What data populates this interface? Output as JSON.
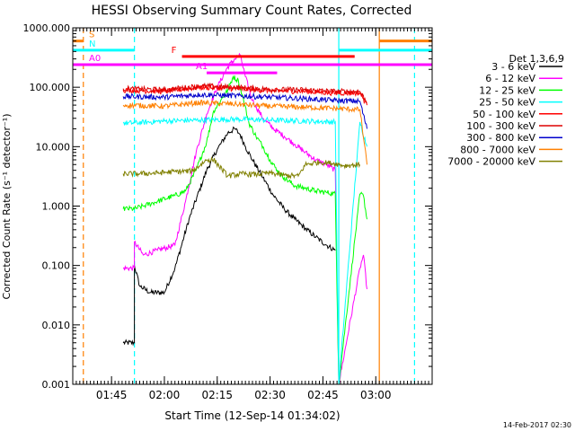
{
  "chart_data": {
    "type": "line",
    "title": "HESSI Observing Summary Count Rates, Corrected",
    "xlabel": "Start Time (12-Sep-14 01:34:02)",
    "ylabel": "Corrected Count Rate (s⁻¹ detector⁻¹)",
    "y_scale": "log",
    "ylim": [
      0.001,
      1000
    ],
    "xlim_minutes": [
      0,
      102
    ],
    "x_ticks": [
      {
        "t": 11,
        "label": "01:45"
      },
      {
        "t": 26,
        "label": "02:00"
      },
      {
        "t": 41,
        "label": "02:15"
      },
      {
        "t": 56,
        "label": "02:30"
      },
      {
        "t": 71,
        "label": "02:45"
      },
      {
        "t": 86,
        "label": "03:00"
      }
    ],
    "y_ticks": [
      {
        "v": 0.001,
        "label": "0.001"
      },
      {
        "v": 0.01,
        "label": "0.010"
      },
      {
        "v": 0.1,
        "label": "0.100"
      },
      {
        "v": 1,
        "label": "1.000"
      },
      {
        "v": 10,
        "label": "10.000"
      },
      {
        "v": 100,
        "label": "100.000"
      },
      {
        "v": 1000,
        "label": "1000.000"
      }
    ],
    "legend": {
      "title": "Det 1,3,6,9",
      "placement": "right"
    },
    "series": [
      {
        "name": "3 - 6 keV",
        "color": "#000000",
        "t": [
          14.3,
          17.5,
          17.5,
          19,
          22,
          26,
          29,
          33,
          38,
          41,
          44,
          46,
          47.5,
          49,
          51,
          54,
          57,
          60,
          63,
          66,
          69,
          72,
          74.5
        ],
        "v": [
          0.005,
          0.005,
          0.1,
          0.045,
          0.035,
          0.035,
          0.09,
          0.6,
          4,
          9,
          17,
          20,
          16,
          10,
          6,
          3,
          1.5,
          0.9,
          0.6,
          0.42,
          0.3,
          0.22,
          0.18
        ]
      },
      {
        "name": "6 - 12 keV",
        "color": "#ff00ff",
        "t": [
          14.3,
          17.5,
          17.5,
          20,
          24,
          29,
          32,
          35,
          38,
          41,
          44,
          46,
          47.5,
          49,
          51,
          54,
          57,
          60,
          63,
          66,
          69,
          72,
          74.5,
          75.5,
          81.5,
          82.5,
          83.5
        ],
        "v": [
          0.09,
          0.09,
          0.25,
          0.15,
          0.18,
          0.22,
          1.2,
          8,
          35,
          100,
          220,
          300,
          350,
          150,
          60,
          30,
          20,
          15,
          11,
          8,
          6,
          5,
          4,
          0.001,
          0.09,
          0.15,
          0.04
        ]
      },
      {
        "name": "12 - 25 keV",
        "color": "#00ff00",
        "t": [
          14.3,
          17.5,
          20,
          24,
          29,
          32,
          35,
          38,
          40,
          42,
          44,
          45.5,
          47,
          48.5,
          50,
          52,
          54,
          56,
          58,
          60,
          63,
          66,
          69,
          72,
          74.5,
          75.5,
          81.5,
          82.5,
          83.5
        ],
        "v": [
          0.9,
          0.9,
          1,
          1.2,
          1.5,
          1.8,
          4,
          12,
          40,
          60,
          90,
          150,
          130,
          60,
          25,
          15,
          10,
          6,
          4,
          3,
          2.2,
          2,
          1.8,
          1.7,
          1.6,
          0.001,
          1.6,
          1.5,
          0.6
        ]
      },
      {
        "name": "25 - 50 keV",
        "color": "#00ffff",
        "t": [
          14.3,
          17.5,
          26,
          36,
          46,
          56,
          66,
          74.5,
          75.5,
          81.5,
          83.5
        ],
        "v": [
          25,
          25,
          27,
          28,
          29,
          28,
          27,
          26,
          0.001,
          26,
          10
        ]
      },
      {
        "name": "50 - 100 keV",
        "color": "#ff0000",
        "t": [
          14.3,
          26,
          36,
          46,
          56,
          66,
          74.5,
          81.5,
          83.5
        ],
        "v": [
          90,
          85,
          100,
          95,
          88,
          85,
          80,
          80,
          50
        ]
      },
      {
        "name": "100 - 300 keV",
        "color": "#dd0000",
        "t": [
          14.3,
          26,
          36,
          46,
          56,
          66,
          74.5,
          81.5,
          83.5
        ],
        "v": [
          95,
          90,
          105,
          100,
          92,
          90,
          85,
          85,
          55
        ]
      },
      {
        "name": "300 - 800 keV",
        "color": "#0000cc",
        "t": [
          14.3,
          26,
          36,
          46,
          56,
          66,
          74.5,
          81.5,
          83.5
        ],
        "v": [
          70,
          68,
          75,
          72,
          68,
          64,
          60,
          58,
          20
        ]
      },
      {
        "name": "800 - 7000 keV",
        "color": "#ff8000",
        "t": [
          14.3,
          26,
          36,
          46,
          56,
          66,
          74.5,
          81.5,
          83.5
        ],
        "v": [
          50,
          48,
          55,
          52,
          48,
          46,
          44,
          42,
          5
        ]
      },
      {
        "name": "7000 - 20000 keV",
        "color": "#808000",
        "t": [
          14.3,
          19,
          24,
          29,
          34,
          38,
          40,
          44,
          48,
          52,
          56,
          60,
          64,
          66,
          70,
          74.5,
          77,
          81.5
        ],
        "v": [
          3.5,
          3.5,
          3.6,
          3.8,
          3.9,
          6,
          6,
          3.2,
          3.5,
          3.4,
          3.6,
          3.3,
          3.2,
          5,
          5.5,
          5.2,
          4.8,
          5
        ]
      }
    ],
    "flags": [
      {
        "label": "S",
        "color": "#ff8000",
        "value": 600,
        "segments": [
          [
            0,
            3
          ],
          [
            87,
            102
          ]
        ]
      },
      {
        "label": "N",
        "color": "#00ffff",
        "value": 420,
        "segments": [
          [
            0,
            17.5
          ],
          [
            75.5,
            102
          ]
        ]
      },
      {
        "label": "F",
        "color": "#ff0000",
        "value": 330,
        "segments": [
          [
            31,
            80
          ]
        ]
      },
      {
        "label": "A0",
        "color": "#ff00ff",
        "value": 240,
        "segments": [
          [
            0,
            102
          ]
        ]
      },
      {
        "label": "A1",
        "color": "#ff00ff",
        "value": 175,
        "segments": [
          [
            38,
            58
          ]
        ]
      }
    ],
    "vertical_lines": [
      {
        "t": 3,
        "color": "#ff8000",
        "dashed": true
      },
      {
        "t": 17.5,
        "color": "#00ffff",
        "dashed": true
      },
      {
        "t": 75.5,
        "color": "#00ffff",
        "dashed": false
      },
      {
        "t": 87,
        "color": "#ff8000",
        "dashed": false
      },
      {
        "t": 97,
        "color": "#00ffff",
        "dashed": true
      }
    ],
    "date_stamp": "14-Feb-2017 02:30"
  }
}
